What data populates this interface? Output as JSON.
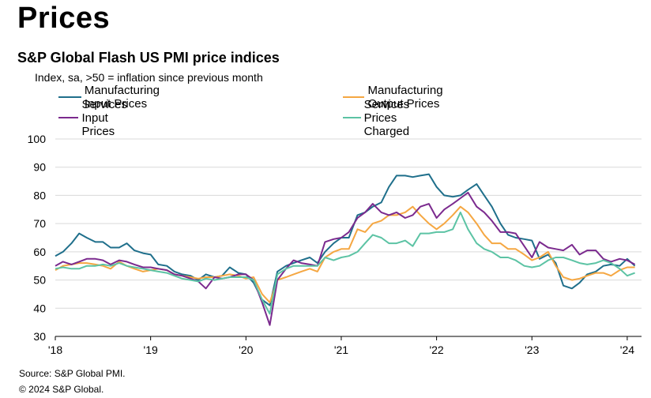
{
  "heading": "Prices",
  "chart_data": {
    "type": "line",
    "title": "S&P Global Flash US PMI price indices",
    "subtitle": "Index, sa, >50 = inflation since previous month",
    "ylim": [
      30,
      100
    ],
    "yticks": [
      30,
      40,
      50,
      60,
      70,
      80,
      90,
      100
    ],
    "xlim": [
      2018.0,
      2024.15
    ],
    "xticks": [
      {
        "value": 2018,
        "label": "'18"
      },
      {
        "value": 2019,
        "label": "'19"
      },
      {
        "value": 2020,
        "label": "'20"
      },
      {
        "value": 2021,
        "label": "'21"
      },
      {
        "value": 2022,
        "label": "'22"
      },
      {
        "value": 2023,
        "label": "'23"
      },
      {
        "value": 2024,
        "label": "'24"
      }
    ],
    "grid": "horizontal",
    "legend_position": "top",
    "series": [
      {
        "name": "Manufacturing Input Prices",
        "color": "#1f6f8b",
        "x": [
          2018.0,
          2018.08,
          2018.17,
          2018.25,
          2018.33,
          2018.42,
          2018.5,
          2018.58,
          2018.67,
          2018.75,
          2018.83,
          2018.92,
          2019.0,
          2019.08,
          2019.17,
          2019.25,
          2019.33,
          2019.42,
          2019.5,
          2019.58,
          2019.67,
          2019.75,
          2019.83,
          2019.92,
          2020.0,
          2020.08,
          2020.17,
          2020.25,
          2020.33,
          2020.42,
          2020.5,
          2020.58,
          2020.67,
          2020.75,
          2020.83,
          2020.92,
          2021.0,
          2021.08,
          2021.17,
          2021.25,
          2021.33,
          2021.42,
          2021.5,
          2021.58,
          2021.67,
          2021.75,
          2021.83,
          2021.92,
          2022.0,
          2022.08,
          2022.17,
          2022.25,
          2022.33,
          2022.42,
          2022.5,
          2022.58,
          2022.67,
          2022.75,
          2022.83,
          2022.92,
          2023.0,
          2023.08,
          2023.17,
          2023.25,
          2023.33,
          2023.42,
          2023.5,
          2023.58,
          2023.67,
          2023.75,
          2023.83,
          2023.92,
          2024.0,
          2024.08
        ],
        "values": [
          58.5,
          60,
          63,
          66.5,
          65,
          63.5,
          63.5,
          61.5,
          61.5,
          63,
          60.5,
          59.5,
          59,
          55.5,
          55,
          53,
          52,
          51.5,
          50,
          52,
          51,
          51.5,
          54.5,
          52.5,
          52,
          49,
          43,
          41,
          53,
          55,
          56,
          57,
          58,
          56,
          60,
          63,
          65,
          65,
          73,
          74,
          76,
          77.5,
          83,
          87,
          87,
          86.5,
          87,
          87.5,
          83,
          80,
          79.5,
          80,
          82,
          84,
          80,
          76,
          70,
          66,
          65,
          64.5,
          64,
          57.5,
          59,
          56,
          48,
          47,
          49,
          52,
          53,
          55,
          55.5,
          55,
          57.5,
          55
        ]
      },
      {
        "name": "Manufacturing Output Prices",
        "color": "#f5a742",
        "x": [
          2018.0,
          2018.08,
          2018.17,
          2018.25,
          2018.33,
          2018.42,
          2018.5,
          2018.58,
          2018.67,
          2018.75,
          2018.83,
          2018.92,
          2019.0,
          2019.08,
          2019.17,
          2019.25,
          2019.33,
          2019.42,
          2019.5,
          2019.58,
          2019.67,
          2019.75,
          2019.83,
          2019.92,
          2020.0,
          2020.08,
          2020.17,
          2020.25,
          2020.33,
          2020.42,
          2020.5,
          2020.58,
          2020.67,
          2020.75,
          2020.83,
          2020.92,
          2021.0,
          2021.08,
          2021.17,
          2021.25,
          2021.33,
          2021.42,
          2021.5,
          2021.58,
          2021.67,
          2021.75,
          2021.83,
          2021.92,
          2022.0,
          2022.08,
          2022.17,
          2022.25,
          2022.33,
          2022.42,
          2022.5,
          2022.58,
          2022.67,
          2022.75,
          2022.83,
          2022.92,
          2023.0,
          2023.08,
          2023.17,
          2023.25,
          2023.33,
          2023.42,
          2023.5,
          2023.58,
          2023.67,
          2023.75,
          2023.83,
          2023.92,
          2024.0,
          2024.08
        ],
        "values": [
          53.5,
          55,
          55.5,
          56,
          56,
          55.5,
          55,
          54,
          56.5,
          55,
          54,
          53,
          53.5,
          54,
          53.5,
          52,
          51.5,
          51,
          50.5,
          51,
          51,
          51.5,
          52,
          51.5,
          50.5,
          51,
          45,
          42,
          50,
          51,
          52,
          53,
          54,
          53,
          58,
          60,
          61,
          61,
          68,
          67,
          70,
          71,
          73,
          73,
          74,
          76,
          73,
          70,
          68,
          70,
          73,
          76,
          74,
          70,
          66,
          63,
          63,
          61,
          61,
          59,
          57,
          58,
          60,
          55,
          51,
          50,
          50.5,
          51.5,
          52.5,
          52.5,
          51.5,
          53.5,
          54.5,
          54.5
        ]
      },
      {
        "name": "Services Input Prices",
        "color": "#7b2a8e",
        "x": [
          2018.0,
          2018.08,
          2018.17,
          2018.25,
          2018.33,
          2018.42,
          2018.5,
          2018.58,
          2018.67,
          2018.75,
          2018.83,
          2018.92,
          2019.0,
          2019.08,
          2019.17,
          2019.25,
          2019.33,
          2019.42,
          2019.5,
          2019.58,
          2019.67,
          2019.75,
          2019.83,
          2019.92,
          2020.0,
          2020.08,
          2020.17,
          2020.25,
          2020.33,
          2020.42,
          2020.5,
          2020.58,
          2020.67,
          2020.75,
          2020.83,
          2020.92,
          2021.0,
          2021.08,
          2021.17,
          2021.25,
          2021.33,
          2021.42,
          2021.5,
          2021.58,
          2021.67,
          2021.75,
          2021.83,
          2021.92,
          2022.0,
          2022.08,
          2022.17,
          2022.25,
          2022.33,
          2022.42,
          2022.5,
          2022.58,
          2022.67,
          2022.75,
          2022.83,
          2022.92,
          2023.0,
          2023.08,
          2023.17,
          2023.25,
          2023.33,
          2023.42,
          2023.5,
          2023.58,
          2023.67,
          2023.75,
          2023.83,
          2023.92,
          2024.0,
          2024.08
        ],
        "values": [
          55,
          56.5,
          55.5,
          56.5,
          57.5,
          57.5,
          57,
          55.5,
          57,
          56.5,
          55.5,
          54.5,
          54.5,
          54,
          53.5,
          52,
          51.5,
          50.5,
          49.5,
          47,
          51,
          50.5,
          51,
          52,
          52,
          50,
          42,
          34,
          50,
          54,
          57,
          56,
          55.5,
          55,
          63.5,
          64.5,
          65,
          67,
          72,
          74,
          77,
          74,
          73,
          74,
          72,
          73,
          76,
          77,
          72,
          75,
          77,
          79,
          81,
          76,
          74,
          71,
          67,
          67,
          66.5,
          62,
          58,
          63.5,
          61.5,
          61,
          60.5,
          62.5,
          59,
          60.5,
          60.5,
          57.5,
          56.5,
          57.5,
          57,
          55.5
        ]
      },
      {
        "name": "Services Prices Charged",
        "color": "#5cc3a4",
        "x": [
          2018.0,
          2018.08,
          2018.17,
          2018.25,
          2018.33,
          2018.42,
          2018.5,
          2018.58,
          2018.67,
          2018.75,
          2018.83,
          2018.92,
          2019.0,
          2019.08,
          2019.17,
          2019.25,
          2019.33,
          2019.42,
          2019.5,
          2019.58,
          2019.67,
          2019.75,
          2019.83,
          2019.92,
          2020.0,
          2020.08,
          2020.17,
          2020.25,
          2020.33,
          2020.42,
          2020.5,
          2020.58,
          2020.67,
          2020.75,
          2020.83,
          2020.92,
          2021.0,
          2021.08,
          2021.17,
          2021.25,
          2021.33,
          2021.42,
          2021.5,
          2021.58,
          2021.67,
          2021.75,
          2021.83,
          2021.92,
          2022.0,
          2022.08,
          2022.17,
          2022.25,
          2022.33,
          2022.42,
          2022.5,
          2022.58,
          2022.67,
          2022.75,
          2022.83,
          2022.92,
          2023.0,
          2023.08,
          2023.17,
          2023.25,
          2023.33,
          2023.42,
          2023.5,
          2023.58,
          2023.67,
          2023.75,
          2023.83,
          2023.92,
          2024.0,
          2024.08
        ],
        "values": [
          54,
          54.5,
          54,
          54,
          55,
          55,
          55.5,
          55,
          56,
          55,
          54.5,
          54,
          53.5,
          53,
          52.5,
          51.5,
          50.5,
          50,
          49.5,
          50.5,
          50,
          50.5,
          51,
          51,
          51,
          50,
          43,
          38,
          52,
          54,
          55,
          55,
          55,
          55,
          58,
          57,
          58,
          58.5,
          60,
          63,
          66,
          65,
          63,
          63,
          64,
          62,
          66.5,
          66.5,
          67,
          67,
          68,
          74,
          68,
          63,
          61,
          60,
          58,
          58,
          57,
          55,
          54.5,
          55,
          57,
          58,
          58,
          57,
          56,
          55.5,
          56,
          57,
          56,
          54,
          51.5,
          52.5
        ]
      }
    ]
  },
  "source": "Source: S&P Global PMI.",
  "copyright": "© 2024 S&P Global."
}
